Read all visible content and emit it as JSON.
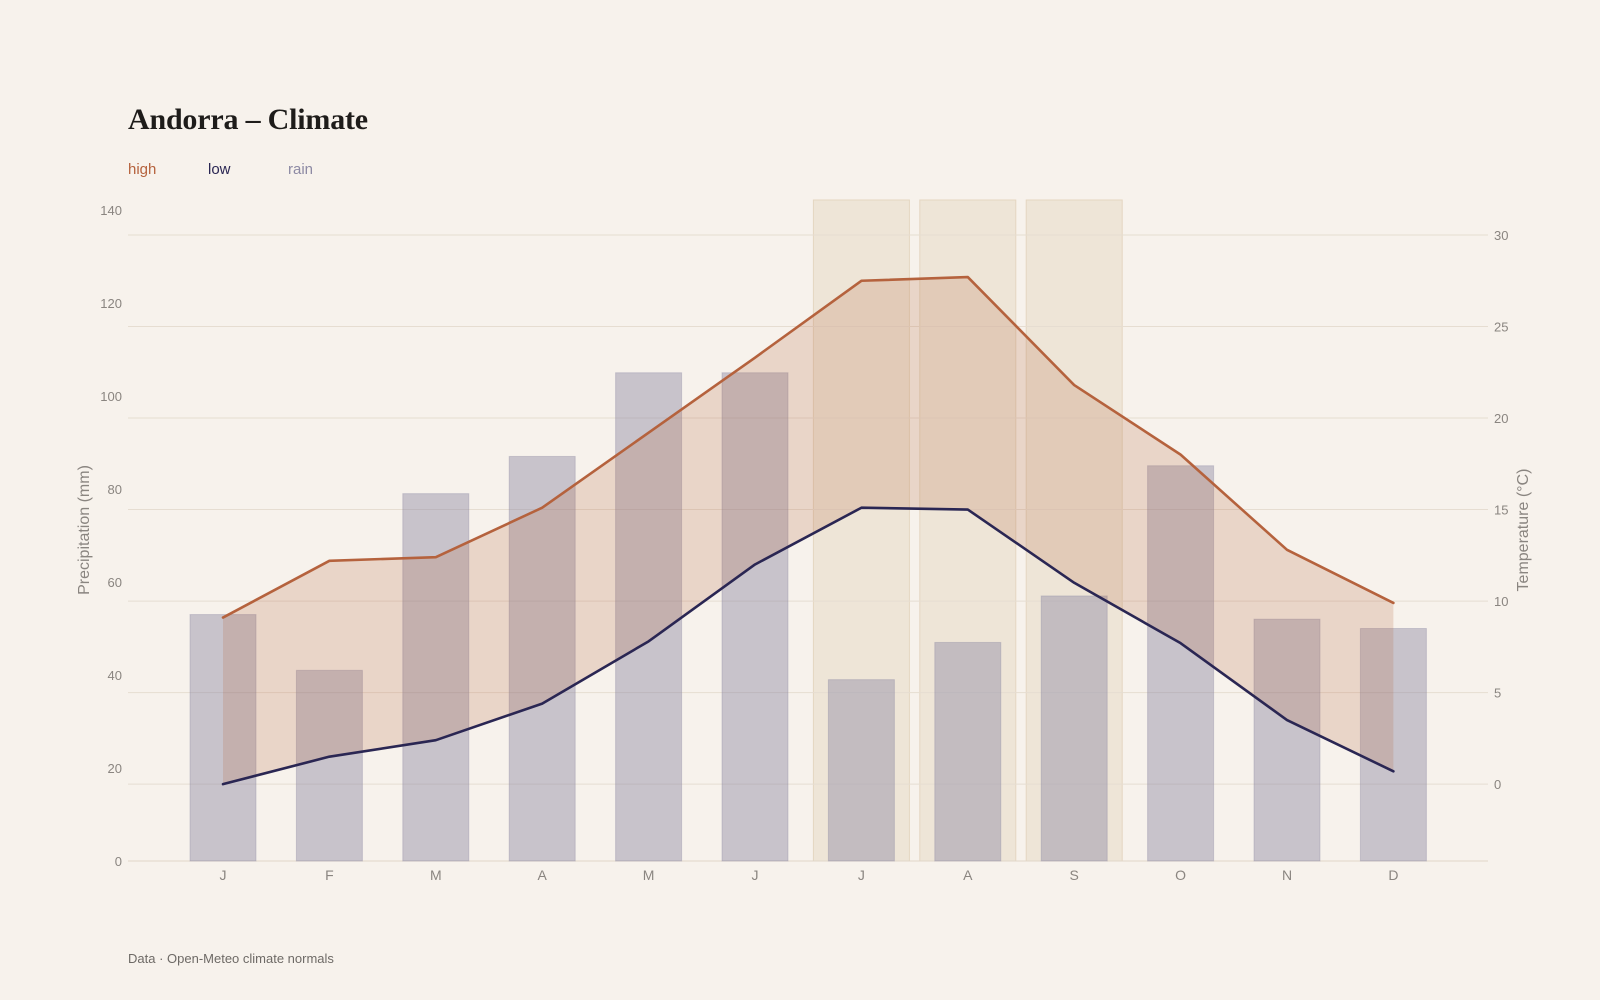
{
  "title": "Andorra – Climate",
  "legend": {
    "high": "high",
    "low": "low",
    "rain": "rain"
  },
  "source": "Data · Open-Meteo climate normals",
  "colors": {
    "background": "#f7f2ec",
    "high": "#b5623d",
    "low": "#2a2653",
    "rain": "#8d8aa4",
    "highlight": "#ebe0d0"
  },
  "chart_data": {
    "type": "bar",
    "title": "Andorra – Climate",
    "categories": [
      "J",
      "F",
      "M",
      "A",
      "M",
      "J",
      "J",
      "A",
      "S",
      "O",
      "N",
      "D"
    ],
    "highlighted_months": [
      6,
      7,
      8
    ],
    "precipitation": {
      "name": "rain",
      "type": "bar",
      "axis": "left",
      "values": [
        53,
        41,
        79,
        87,
        105,
        105,
        39,
        47,
        57,
        85,
        52,
        50
      ]
    },
    "temperature_high": {
      "name": "high",
      "type": "line",
      "axis": "right",
      "values": [
        9.1,
        12.2,
        12.4,
        15.1,
        19.2,
        23.3,
        27.5,
        27.7,
        21.8,
        18.0,
        12.8,
        9.9
      ]
    },
    "temperature_low": {
      "name": "low",
      "type": "line",
      "axis": "right",
      "values": [
        0.0,
        1.5,
        2.4,
        4.4,
        7.8,
        12.0,
        15.1,
        15.0,
        11.0,
        7.7,
        3.5,
        0.7
      ]
    },
    "left_axis": {
      "label": "Precipitation (mm)",
      "range": [
        0,
        140
      ],
      "ticks": [
        0,
        20,
        40,
        60,
        80,
        100,
        120,
        140
      ]
    },
    "right_axis": {
      "label": "Temperature (°C)",
      "range": [
        -4.2,
        30
      ],
      "ticks": [
        0,
        5,
        10,
        15,
        20,
        25,
        30
      ]
    },
    "grid": true,
    "legend_position": "top-left"
  }
}
